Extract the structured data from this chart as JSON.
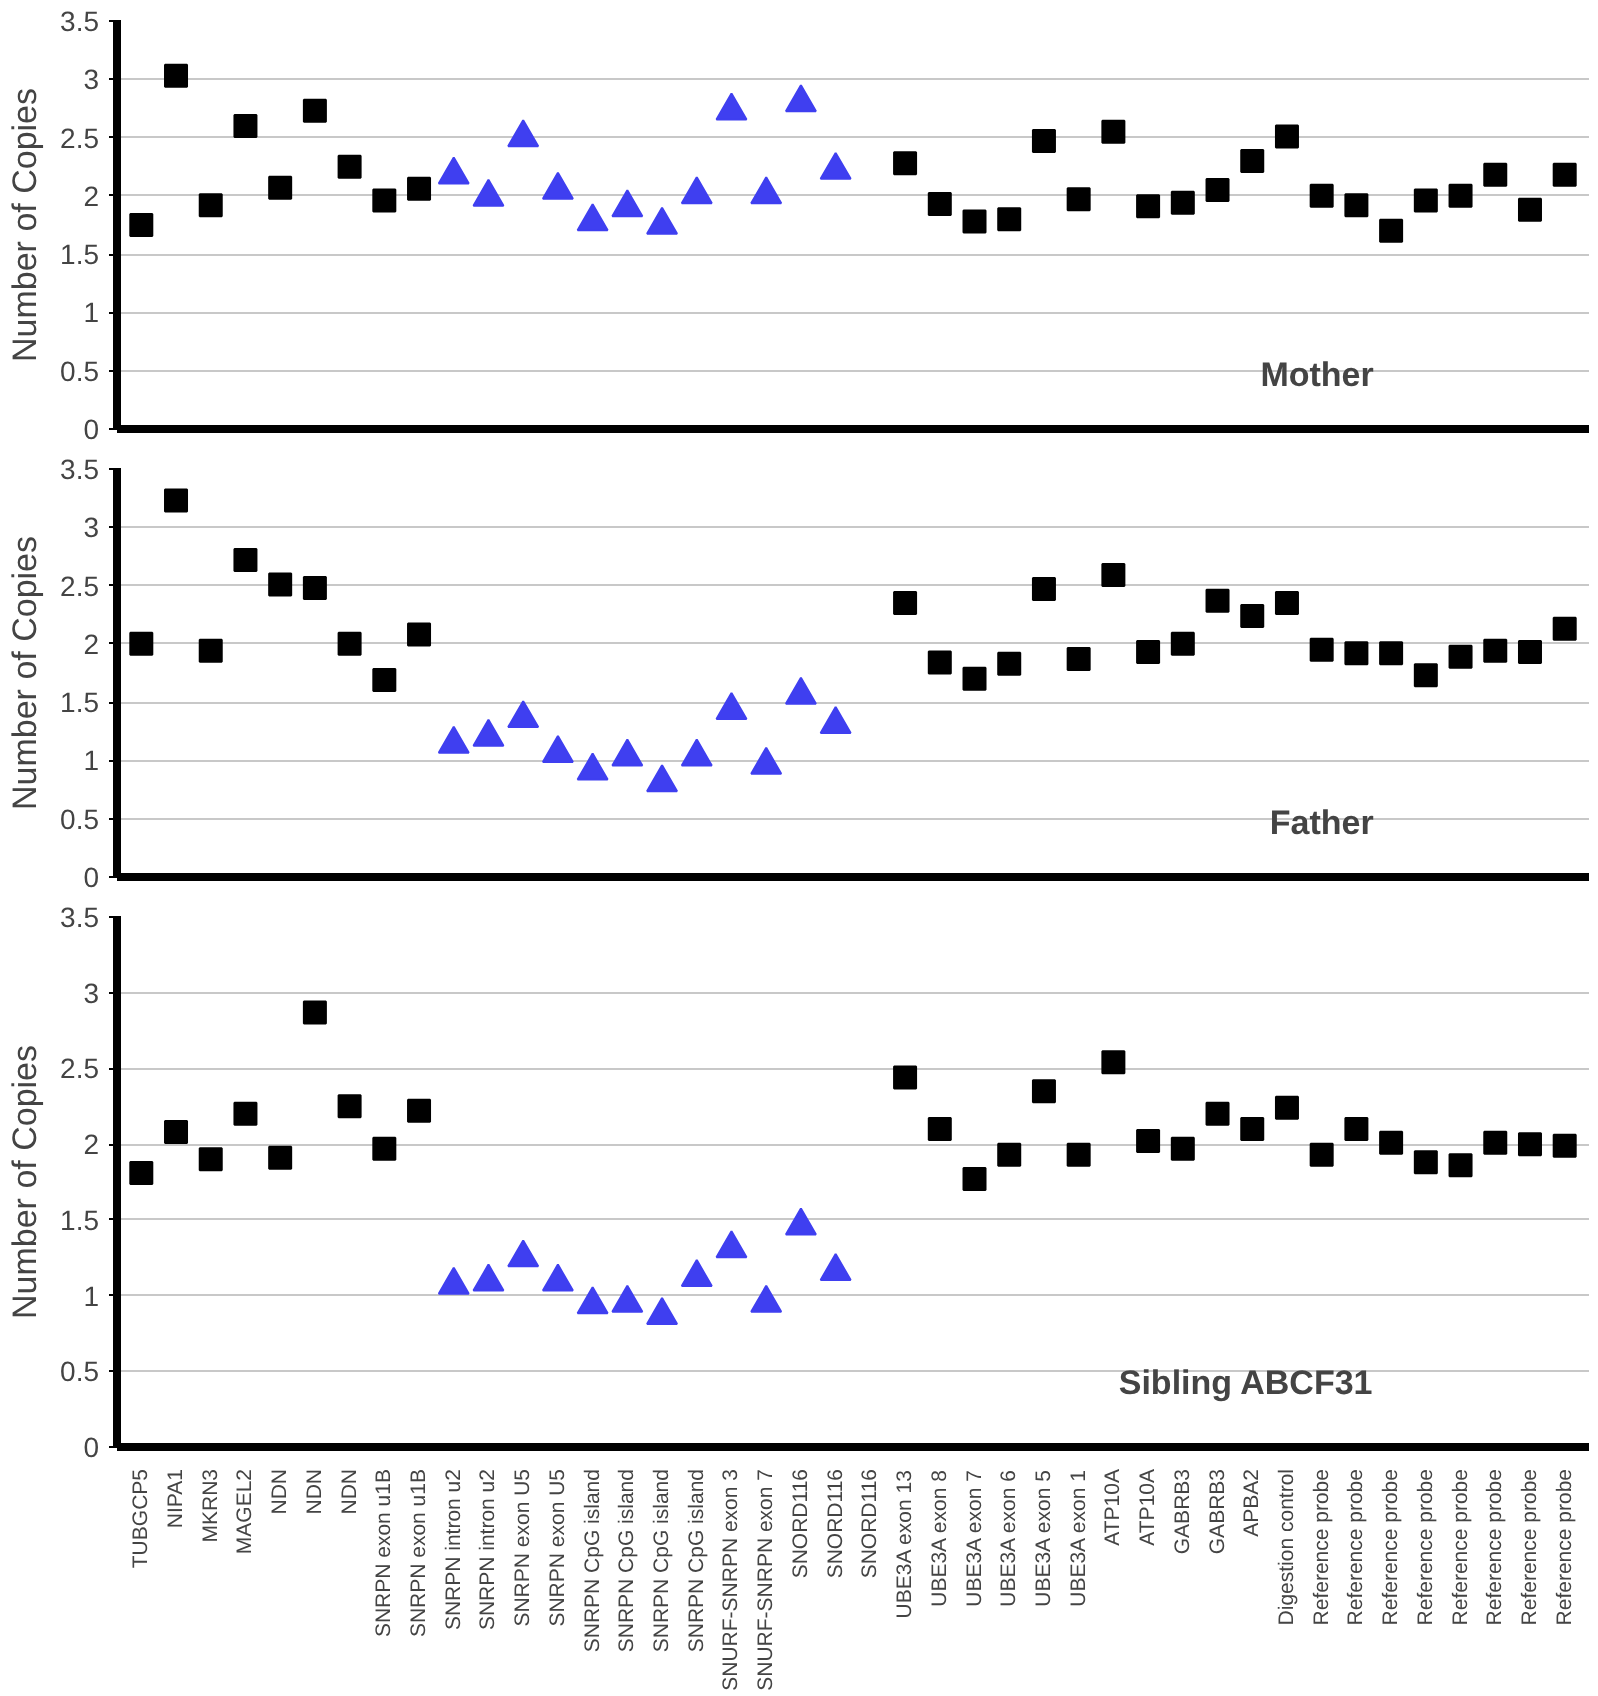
{
  "chart_data": [
    {
      "type": "scatter",
      "ylabel": "Number of Copies",
      "ylim": [
        0,
        3.5
      ],
      "yticks": [
        0,
        0.5,
        1,
        1.5,
        2,
        2.5,
        3,
        3.5
      ],
      "grid": "y",
      "tick_labels": "y",
      "annotations": [
        "Mother"
      ],
      "series": [
        {
          "color": "#000000",
          "marker": "square",
          "values": [
            1.75,
            3.03,
            1.92,
            2.6,
            2.07,
            2.73,
            2.25,
            1.96,
            2.06,
            null,
            null,
            null,
            null,
            null,
            null,
            null,
            null,
            null,
            null,
            null,
            null,
            null,
            2.28,
            1.93,
            1.78,
            1.8,
            2.47,
            1.97,
            2.55,
            1.91,
            1.94,
            2.05,
            2.3,
            2.51,
            2.0,
            1.92,
            1.7,
            1.96,
            2.0,
            2.18,
            1.88,
            2.18
          ]
        },
        {
          "color": "#3f3ff0",
          "marker": "triangle",
          "values": [
            null,
            null,
            null,
            null,
            null,
            null,
            null,
            null,
            null,
            2.18,
            1.99,
            2.5,
            2.05,
            1.78,
            1.9,
            1.75,
            2.01,
            2.73,
            2.01,
            2.8,
            2.22,
            null,
            null,
            null,
            null,
            null,
            null,
            null,
            null,
            null,
            null,
            null,
            null,
            null,
            null,
            null,
            null,
            null,
            null,
            null,
            null,
            null
          ]
        }
      ]
    },
    {
      "type": "scatter",
      "ylabel": "Number of Copies",
      "ylim": [
        0,
        3.5
      ],
      "yticks": [
        0,
        0.5,
        1,
        1.5,
        2,
        2.5,
        3,
        3.5
      ],
      "grid": "y",
      "tick_labels": "y",
      "annotations": [
        "Father"
      ],
      "series": [
        {
          "color": "#000000",
          "marker": "square",
          "values": [
            2.0,
            3.23,
            1.94,
            2.72,
            2.51,
            2.48,
            2.0,
            1.69,
            2.08,
            null,
            null,
            null,
            null,
            null,
            null,
            null,
            null,
            null,
            null,
            null,
            null,
            null,
            2.35,
            1.84,
            1.7,
            1.83,
            2.47,
            1.87,
            2.59,
            1.93,
            2.0,
            2.37,
            2.24,
            2.35,
            1.95,
            1.92,
            1.92,
            1.73,
            1.89,
            1.94,
            1.93,
            2.13
          ]
        },
        {
          "color": "#3f3ff0",
          "marker": "triangle",
          "values": [
            null,
            null,
            null,
            null,
            null,
            null,
            null,
            null,
            null,
            1.14,
            1.2,
            1.36,
            1.06,
            0.91,
            1.03,
            0.81,
            1.03,
            1.43,
            0.96,
            1.56,
            1.31,
            null,
            null,
            null,
            null,
            null,
            null,
            null,
            null,
            null,
            null,
            null,
            null,
            null,
            null,
            null,
            null,
            null,
            null,
            null,
            null,
            null
          ]
        }
      ]
    },
    {
      "type": "scatter",
      "categories": [
        "TUBGCP5",
        "NIPA1",
        "MKRN3",
        "MAGEL2",
        "NDN",
        "NDN",
        "NDN",
        "SNRPN exon u1B",
        "SNRPN exon u1B",
        "SNRPN intron u2",
        "SNRPN intron u2",
        "SNRPN exon U5",
        "SNRPN exon U5",
        "SNRPN CpG island",
        "SNRPN CpG island",
        "SNRPN CpG island",
        "SNRPN CpG island",
        "SNURF-SNRPN exon 3",
        "SNURF-SNRPN exon 7",
        "SNORD116",
        "SNORD116",
        "SNORD116",
        "UBE3A exon 13",
        "UBE3A exon 8",
        "UBE3A exon 7",
        "UBE3A exon 6",
        "UBE3A exon 5",
        "UBE3A exon 1",
        "ATP10A",
        "ATP10A",
        "GABRB3",
        "GABRB3",
        "APBA2",
        "Digestion control",
        "Reference probe",
        "Reference probe",
        "Reference probe",
        "Reference probe",
        "Reference probe",
        "Reference probe",
        "Reference probe",
        "Reference probe"
      ],
      "ylabel": "Number of Copies",
      "ylim": [
        0,
        3.5
      ],
      "yticks": [
        0,
        0.5,
        1,
        1.5,
        2,
        2.5,
        3,
        3.5
      ],
      "grid": "y",
      "annotations": [
        "Sibling ABCF31"
      ],
      "series": [
        {
          "color": "#000000",
          "marker": "square",
          "values": [
            1.81,
            2.08,
            1.9,
            2.2,
            1.91,
            2.87,
            2.25,
            1.97,
            2.22,
            null,
            null,
            null,
            null,
            null,
            null,
            null,
            null,
            null,
            null,
            null,
            null,
            null,
            2.44,
            2.1,
            1.77,
            1.93,
            2.35,
            1.93,
            2.54,
            2.02,
            1.97,
            2.2,
            2.1,
            2.24,
            1.93,
            2.1,
            2.01,
            1.88,
            1.86,
            2.01,
            2.0,
            1.99
          ]
        },
        {
          "color": "#3f3ff0",
          "marker": "triangle",
          "values": [
            null,
            null,
            null,
            null,
            null,
            null,
            null,
            null,
            null,
            1.07,
            1.09,
            1.25,
            1.09,
            0.94,
            0.95,
            0.87,
            1.12,
            1.31,
            0.95,
            1.46,
            1.16,
            null,
            null,
            null,
            null,
            null,
            null,
            null,
            null,
            null,
            null,
            null,
            null,
            null,
            null,
            null,
            null,
            null,
            null,
            null,
            null,
            null
          ]
        }
      ]
    }
  ]
}
